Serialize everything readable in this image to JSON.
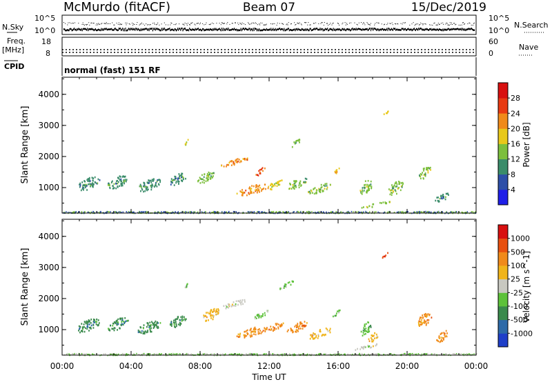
{
  "header": {
    "station": "McMurdo (fitACF)",
    "beam": "Beam 07",
    "date": "15/Dec/2019"
  },
  "top_panels": {
    "nsky_label": "N.Sky",
    "nsearch_label": "N.Search",
    "freq_label_1": "Freq.",
    "freq_label_2": "[MHz]",
    "nave_label": "Nave",
    "cpid_label": "CPID",
    "cpid_text": "normal (fast) 151 RF",
    "noise_ticks_left": [
      "10^5",
      "10^0"
    ],
    "noise_ticks_right": [
      "10^5",
      "10^0"
    ],
    "freq_ticks": [
      "18",
      "8"
    ],
    "nave_ticks": [
      "60",
      "0"
    ]
  },
  "chart_data": [
    {
      "type": "heatmap",
      "panel": "power",
      "ylabel": "Slant Range [km]",
      "xlabel": "Time UT",
      "x_ticks": [
        "00:00",
        "04:00",
        "08:00",
        "12:00",
        "16:00",
        "20:00",
        "00:00"
      ],
      "y_ticks": [
        "1000",
        "2000",
        "3000",
        "4000"
      ],
      "ylim": [
        180,
        4550
      ],
      "xlim_hours": [
        0,
        24
      ],
      "colorbar_label": "Power [dB]",
      "colorbar_ticks": [
        "4",
        "8",
        "12",
        "16",
        "20",
        "24",
        "28"
      ],
      "colorbar_colors": [
        "#1f1fe8",
        "#2d4fa8",
        "#3a8c6a",
        "#7cbf3c",
        "#e8c81a",
        "#f08a1a",
        "#e83a12",
        "#d81010"
      ],
      "blobs": [
        {
          "t": 1.5,
          "r": 1150,
          "dt": 1.3,
          "dr": 380,
          "lvl": 2
        },
        {
          "t": 3.2,
          "r": 1200,
          "dt": 1.2,
          "dr": 360,
          "lvl": 2
        },
        {
          "t": 5.0,
          "r": 1100,
          "dt": 1.4,
          "dr": 340,
          "lvl": 2
        },
        {
          "t": 6.7,
          "r": 1300,
          "dt": 1.0,
          "dr": 330,
          "lvl": 2
        },
        {
          "t": 7.2,
          "r": 2500,
          "dt": 0.2,
          "dr": 180,
          "lvl": 3
        },
        {
          "t": 8.3,
          "r": 1350,
          "dt": 1.0,
          "dr": 300,
          "lvl": 3
        },
        {
          "t": 10.0,
          "r": 1850,
          "dt": 1.6,
          "dr": 170,
          "lvl": 5
        },
        {
          "t": 11.5,
          "r": 1550,
          "dt": 0.6,
          "dr": 160,
          "lvl": 6
        },
        {
          "t": 11.0,
          "r": 950,
          "dt": 1.8,
          "dr": 280,
          "lvl": 5
        },
        {
          "t": 12.3,
          "r": 1100,
          "dt": 1.0,
          "dr": 220,
          "lvl": 4
        },
        {
          "t": 13.6,
          "r": 1150,
          "dt": 1.2,
          "dr": 280,
          "lvl": 3
        },
        {
          "t": 14.9,
          "r": 1000,
          "dt": 1.4,
          "dr": 260,
          "lvl": 3
        },
        {
          "t": 13.5,
          "r": 2450,
          "dt": 0.7,
          "dr": 150,
          "lvl": 3
        },
        {
          "t": 15.9,
          "r": 1550,
          "dt": 0.5,
          "dr": 120,
          "lvl": 4
        },
        {
          "t": 17.6,
          "r": 1050,
          "dt": 0.8,
          "dr": 400,
          "lvl": 3
        },
        {
          "t": 18.7,
          "r": 3400,
          "dt": 0.5,
          "dr": 80,
          "lvl": 4
        },
        {
          "t": 19.3,
          "r": 1000,
          "dt": 0.9,
          "dr": 380,
          "lvl": 3
        },
        {
          "t": 21.0,
          "r": 1500,
          "dt": 0.7,
          "dr": 350,
          "lvl": 3
        },
        {
          "t": 22.0,
          "r": 700,
          "dt": 1.0,
          "dr": 220,
          "lvl": 2
        },
        {
          "t": 18.0,
          "r": 450,
          "dt": 2.0,
          "dr": 90,
          "lvl": 3
        }
      ]
    },
    {
      "type": "heatmap",
      "panel": "velocity",
      "ylabel": "Slant Range [km]",
      "xlabel": "Time UT",
      "x_ticks": [
        "00:00",
        "04:00",
        "08:00",
        "12:00",
        "16:00",
        "20:00",
        "00:00"
      ],
      "y_ticks": [
        "1000",
        "2000",
        "3000",
        "4000"
      ],
      "ylim": [
        180,
        4550
      ],
      "xlim_hours": [
        0,
        24
      ],
      "colorbar_label": "Velocity [m s^-1]",
      "colorbar_ticks": [
        "1000",
        "500",
        "100",
        "25",
        "-25",
        "-100",
        "-500",
        "-1000"
      ],
      "colorbar_colors": [
        "#1f3fc8",
        "#2d6aa8",
        "#3a8a4c",
        "#5dc23a",
        "#c8c8c0",
        "#f0b41a",
        "#f08a1a",
        "#e8500f",
        "#d81010"
      ],
      "blobs": [
        {
          "t": 1.5,
          "r": 1150,
          "dt": 1.3,
          "dr": 380,
          "lvl": 2
        },
        {
          "t": 3.2,
          "r": 1200,
          "dt": 1.2,
          "dr": 360,
          "lvl": 2
        },
        {
          "t": 5.0,
          "r": 1100,
          "dt": 1.4,
          "dr": 340,
          "lvl": 2
        },
        {
          "t": 6.7,
          "r": 1300,
          "dt": 1.0,
          "dr": 330,
          "lvl": 2
        },
        {
          "t": 7.2,
          "r": 2500,
          "dt": 0.2,
          "dr": 180,
          "lvl": 3
        },
        {
          "t": 8.6,
          "r": 1500,
          "dt": 1.0,
          "dr": 350,
          "lvl": 5
        },
        {
          "t": 10.0,
          "r": 1850,
          "dt": 1.6,
          "dr": 170,
          "lvl": 4
        },
        {
          "t": 11.5,
          "r": 1500,
          "dt": 0.8,
          "dr": 200,
          "lvl": 3
        },
        {
          "t": 11.0,
          "r": 950,
          "dt": 1.8,
          "dr": 280,
          "lvl": 6
        },
        {
          "t": 12.3,
          "r": 1100,
          "dt": 1.0,
          "dr": 220,
          "lvl": 6
        },
        {
          "t": 13.6,
          "r": 1100,
          "dt": 1.2,
          "dr": 280,
          "lvl": 6
        },
        {
          "t": 14.9,
          "r": 900,
          "dt": 1.4,
          "dr": 260,
          "lvl": 5
        },
        {
          "t": 13.0,
          "r": 2450,
          "dt": 0.9,
          "dr": 150,
          "lvl": 3
        },
        {
          "t": 15.9,
          "r": 1550,
          "dt": 0.5,
          "dr": 120,
          "lvl": 3
        },
        {
          "t": 17.6,
          "r": 1050,
          "dt": 0.6,
          "dr": 400,
          "lvl": 3
        },
        {
          "t": 18.7,
          "r": 3400,
          "dt": 0.5,
          "dr": 80,
          "lvl": 7
        },
        {
          "t": 18.0,
          "r": 750,
          "dt": 0.6,
          "dr": 300,
          "lvl": 5
        },
        {
          "t": 21.0,
          "r": 1350,
          "dt": 0.8,
          "dr": 420,
          "lvl": 6
        },
        {
          "t": 22.0,
          "r": 800,
          "dt": 0.7,
          "dr": 300,
          "lvl": 6
        },
        {
          "t": 17.5,
          "r": 450,
          "dt": 2.0,
          "dr": 90,
          "lvl": 4
        }
      ]
    }
  ]
}
